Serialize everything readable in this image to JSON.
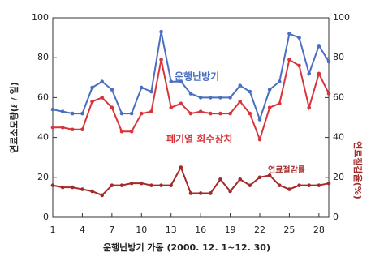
{
  "chart_data": {
    "type": "line",
    "ylabel": "연료소모량(ℓ / 일)",
    "y2label": "연료절감율(%)",
    "xlabel": "운행난방기 가동 (2000. 12. 1~12. 30)",
    "x": [
      1,
      2,
      3,
      4,
      5,
      6,
      7,
      8,
      9,
      10,
      11,
      12,
      13,
      14,
      15,
      16,
      17,
      18,
      19,
      20,
      21,
      22,
      23,
      24,
      25,
      26,
      27,
      28,
      29
    ],
    "xlim": [
      1,
      29
    ],
    "xticks": [
      1,
      4,
      7,
      10,
      13,
      16,
      19,
      22,
      25,
      28
    ],
    "ylim": [
      0,
      100
    ],
    "yticks": [
      0,
      20,
      40,
      60,
      80,
      100
    ],
    "y2lim": [
      0,
      100
    ],
    "y2ticks": [
      0,
      20,
      40,
      60,
      80,
      100
    ],
    "series": [
      {
        "name": "운행난방기",
        "color": "#4a6fc0",
        "values": [
          54,
          53,
          52,
          52,
          65,
          68,
          64,
          52,
          52,
          65,
          63,
          93,
          68,
          68,
          62,
          60,
          60,
          60,
          60,
          66,
          63,
          49,
          64,
          68,
          92,
          90,
          72,
          86,
          78
        ]
      },
      {
        "name": "폐기열 회수장치",
        "color": "#d8343a",
        "values": [
          45,
          45,
          44,
          44,
          58,
          60,
          55,
          43,
          43,
          52,
          53,
          79,
          55,
          57,
          52,
          53,
          52,
          52,
          52,
          58,
          52,
          39,
          55,
          57,
          79,
          76,
          55,
          72,
          62
        ]
      },
      {
        "name": "연료절감률",
        "color": "#a32a2a",
        "axis": "y2",
        "values": [
          16,
          15,
          15,
          14,
          13,
          11,
          16,
          16,
          17,
          17,
          16,
          16,
          16,
          25,
          12,
          12,
          12,
          19,
          13,
          19,
          16,
          20,
          21,
          16,
          14,
          16,
          16,
          16,
          17
        ]
      }
    ]
  }
}
